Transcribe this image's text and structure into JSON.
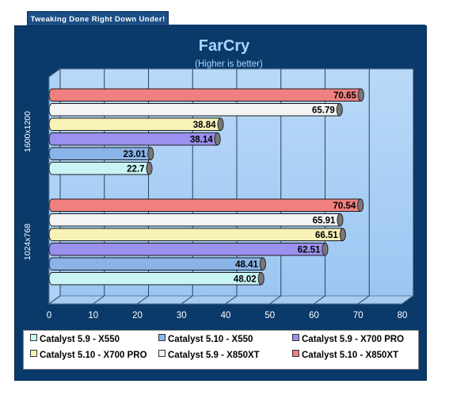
{
  "banner": "Tweaking Done Right Down Under!",
  "chart_data": {
    "type": "bar",
    "orientation": "horizontal",
    "title": "FarCry",
    "subtitle": "(Higher is better)",
    "xlim": [
      0,
      80
    ],
    "ticks": [
      0,
      10,
      20,
      30,
      40,
      50,
      60,
      70,
      80
    ],
    "grid": true,
    "legend_position": "bottom",
    "categories": [
      "1600x1200",
      "1024x768"
    ],
    "series": [
      {
        "name": "Catalyst 5.10 - X850XT",
        "color": "#f08080",
        "values": [
          70.65,
          70.54
        ]
      },
      {
        "name": "Catalyst 5.9 - X850XT",
        "color": "#f4f4f4",
        "values": [
          65.79,
          65.91
        ]
      },
      {
        "name": "Catalyst 5.10 - X700 PRO",
        "color": "#f8f2b8",
        "values": [
          38.84,
          66.51
        ]
      },
      {
        "name": "Catalyst 5.9 - X700 PRO",
        "color": "#9a90ee",
        "values": [
          38.14,
          62.51
        ]
      },
      {
        "name": "Catalyst 5.10 - X550",
        "color": "#8ab4e8",
        "values": [
          23.01,
          48.41
        ]
      },
      {
        "name": "Catalyst 5.9 - X550",
        "color": "#c8f4f4",
        "values": [
          22.7,
          48.02
        ]
      }
    ],
    "legend_order": [
      "Catalyst 5.9 - X550",
      "Catalyst 5.10 - X550",
      "Catalyst 5.9 - X700 PRO",
      "Catalyst 5.10 - X700 PRO",
      "Catalyst 5.9 - X850XT",
      "Catalyst 5.10 - X850XT"
    ]
  }
}
